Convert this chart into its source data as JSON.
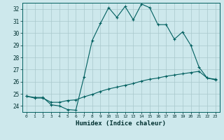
{
  "xlabel": "Humidex (Indice chaleur)",
  "bg_color": "#cde8ec",
  "grid_color": "#a8c8cc",
  "line_color": "#005f5f",
  "xlim": [
    -0.5,
    23.5
  ],
  "ylim": [
    23.5,
    32.5
  ],
  "yticks": [
    24,
    25,
    26,
    27,
    28,
    29,
    30,
    31,
    32
  ],
  "xticks": [
    0,
    1,
    2,
    3,
    4,
    5,
    6,
    7,
    8,
    9,
    10,
    11,
    12,
    13,
    14,
    15,
    16,
    17,
    18,
    19,
    20,
    21,
    22,
    23
  ],
  "humidex_curve": [
    24.8,
    24.7,
    24.7,
    24.1,
    24.0,
    23.7,
    23.65,
    26.4,
    29.4,
    30.8,
    32.1,
    31.3,
    32.2,
    31.1,
    32.4,
    32.1,
    30.7,
    30.7,
    29.5,
    30.1,
    29.0,
    27.2,
    26.3,
    26.2
  ],
  "temp_curve": [
    24.8,
    24.65,
    24.65,
    24.3,
    24.3,
    24.45,
    24.5,
    24.75,
    24.95,
    25.2,
    25.4,
    25.55,
    25.7,
    25.85,
    26.05,
    26.2,
    26.3,
    26.45,
    26.55,
    26.65,
    26.75,
    26.85,
    26.3,
    26.15
  ]
}
